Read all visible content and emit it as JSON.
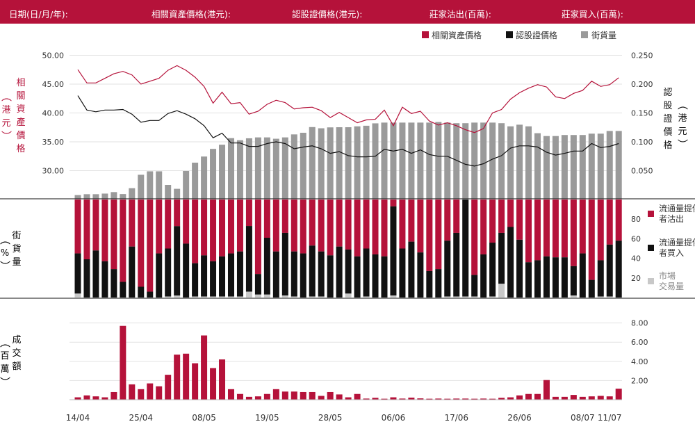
{
  "header": {
    "date_label": "日期(日/月/年):",
    "underlying_label": "相關資產價格(港元):",
    "warrant_label": "認股證價格(港元):",
    "sell_label": "莊家沽出(百萬):",
    "buy_label": "莊家買入(百萬):"
  },
  "colors": {
    "accent": "#b5123a",
    "black": "#111111",
    "gray": "#9a9a9a",
    "light_gray": "#c8c8c8"
  },
  "chart_data": [
    {
      "type": "line",
      "legend": [
        "相關資產價格",
        "認股證價格",
        "街貨量"
      ],
      "left_axis_ticks": [
        "50.00",
        "45.00",
        "40.00",
        "35.00",
        "30.00"
      ],
      "right_axis_ticks": [
        "0.250",
        "0.200",
        "0.150",
        "0.100",
        "0.050"
      ],
      "ylim_left": [
        25,
        50
      ],
      "ylim_right": [
        0,
        0.25
      ],
      "series": [
        {
          "name": "相關資產價格",
          "axis": "left",
          "values": [
            47.5,
            45.2,
            45.2,
            46,
            46.8,
            47.2,
            46.6,
            45,
            45.5,
            46,
            47.4,
            48.2,
            47.4,
            46.2,
            44.6,
            41.7,
            43.6,
            41.6,
            41.8,
            39.8,
            40.3,
            41.5,
            42.2,
            41.8,
            40.7,
            40.9,
            41,
            40.4,
            39.2,
            40.1,
            39.2,
            38.3,
            38.8,
            38.9,
            40.5,
            37.8,
            41,
            39.9,
            40.3,
            38.6,
            37.9,
            38.3,
            37.8,
            37.1,
            36.6,
            37.3,
            40,
            40.6,
            42.4,
            43.5,
            44.3,
            44.9,
            44.5,
            42.8,
            42.5,
            43.4,
            43.9,
            45.5,
            44.6,
            44.9,
            46.1
          ]
        },
        {
          "name": "認股證價格",
          "axis": "right",
          "values": [
            0.18,
            0.155,
            0.152,
            0.155,
            0.155,
            0.156,
            0.148,
            0.134,
            0.137,
            0.137,
            0.149,
            0.154,
            0.148,
            0.14,
            0.128,
            0.107,
            0.115,
            0.098,
            0.098,
            0.092,
            0.092,
            0.097,
            0.1,
            0.097,
            0.088,
            0.091,
            0.093,
            0.088,
            0.08,
            0.083,
            0.076,
            0.074,
            0.074,
            0.075,
            0.087,
            0.084,
            0.087,
            0.08,
            0.086,
            0.078,
            0.075,
            0.075,
            0.068,
            0.061,
            0.058,
            0.062,
            0.07,
            0.076,
            0.089,
            0.093,
            0.093,
            0.091,
            0.082,
            0.077,
            0.08,
            0.084,
            0.084,
            0.097,
            0.09,
            0.092,
            0.097
          ]
        }
      ]
    },
    {
      "type": "bar",
      "name": "街貨量",
      "axis": "percent",
      "values": [
        2.5,
        3.1,
        3.1,
        3.5,
        4.5,
        3.2,
        7.1,
        16.1,
        18.4,
        18.4,
        9.3,
        6.7,
        18.6,
        24.2,
        28.3,
        33.4,
        36.2,
        40.6,
        39.2,
        40.5,
        41.1,
        41.1,
        40.2,
        41.1,
        43.1,
        44.2,
        48,
        47.2,
        47.8,
        47.9,
        47.9,
        48.5,
        48.9,
        50.5,
        51,
        51,
        51,
        51,
        51,
        51,
        51.4,
        51,
        50.6,
        50.6,
        51,
        51,
        51,
        50.6,
        48.5,
        49.6,
        48.5,
        43.9,
        42,
        42,
        42.7,
        42.7,
        42.7,
        43.6,
        43.6,
        45.4,
        45.4
      ]
    },
    {
      "type": "bar",
      "stacked": true,
      "y_ticks": [
        "80",
        "60",
        "40",
        "20"
      ],
      "ylim": [
        0,
        100
      ],
      "series": [
        {
          "name": "流通量提供者沽出",
          "values": [
            55,
            61,
            52,
            63,
            71,
            84,
            48,
            89,
            94,
            55,
            50,
            28,
            45,
            65,
            57,
            63,
            58,
            55,
            53,
            27,
            76,
            39,
            53,
            34,
            53,
            55,
            47,
            53,
            57,
            48,
            51,
            58,
            50,
            56,
            58,
            7,
            50,
            43,
            54,
            73,
            71,
            42,
            34,
            0,
            77,
            56,
            44,
            34,
            28,
            41,
            64,
            62,
            58,
            59,
            59,
            68,
            55,
            82,
            62,
            46,
            42
          ]
        },
        {
          "name": "流通量提供者買入",
          "values": [
            41,
            39,
            48,
            37,
            29,
            16,
            52,
            11,
            6,
            45,
            49,
            73,
            55,
            34,
            42,
            36,
            41,
            44,
            46,
            67,
            21,
            58,
            47,
            64,
            46,
            45,
            52,
            46,
            43,
            52,
            45,
            42,
            49,
            44,
            42,
            91,
            50,
            57,
            46,
            27,
            29,
            57,
            65,
            99,
            22,
            44,
            55,
            52,
            72,
            59,
            36,
            38,
            42,
            41,
            41,
            30,
            45,
            18,
            37,
            53,
            58
          ]
        },
        {
          "name": "市場交易量",
          "values": [
            4,
            0,
            0,
            0,
            0,
            0,
            0,
            0,
            0,
            0,
            1,
            2,
            0,
            1,
            1,
            1,
            1,
            1,
            1,
            6,
            3,
            3,
            0,
            2,
            1,
            0,
            1,
            1,
            0,
            0,
            4,
            0,
            1,
            0,
            0,
            2,
            0,
            0,
            0,
            0,
            0,
            1,
            1,
            1,
            1,
            0,
            1,
            14,
            0,
            0,
            0,
            0,
            0,
            0,
            0,
            2,
            0,
            0,
            1,
            1,
            0
          ]
        }
      ]
    },
    {
      "type": "bar",
      "name": "成交額",
      "y_ticks": [
        "8.00",
        "6.00",
        "4.00",
        "2.00"
      ],
      "ylim": [
        0,
        8.8
      ],
      "values": [
        0.25,
        0.45,
        0.35,
        0.25,
        0.8,
        7.7,
        1.6,
        1.1,
        1.7,
        1.4,
        2.6,
        4.7,
        4.8,
        3.8,
        6.7,
        3.3,
        4.2,
        1.1,
        0.6,
        0.3,
        0.35,
        0.6,
        1.1,
        0.85,
        0.85,
        0.8,
        0.8,
        0.4,
        0.8,
        0.55,
        0.25,
        0.6,
        0.12,
        0.2,
        0.1,
        0.25,
        0.12,
        0.22,
        0.14,
        0.1,
        0.12,
        0.1,
        0.12,
        0.12,
        0.1,
        0.12,
        0.1,
        0.2,
        0.25,
        0.45,
        0.6,
        0.6,
        2.05,
        0.3,
        0.3,
        0.5,
        0.3,
        0.35,
        0.4,
        0.35,
        1.15
      ]
    }
  ],
  "x_axis": {
    "labels": [
      "14/04",
      "25/04",
      "08/05",
      "19/05",
      "28/05",
      "06/06",
      "17/06",
      "26/06",
      "08/07",
      "11/07"
    ],
    "label_indices": [
      0,
      7,
      14,
      21,
      28,
      35,
      42,
      49,
      56,
      59
    ]
  },
  "axis_titles": {
    "left_price": "相關資產價格",
    "left_price_unit": "港元",
    "right_price": "認股證價格",
    "right_price_unit": "港元",
    "middle_percent": "%",
    "middle_title": "街貨量",
    "bottom_unit": "百萬",
    "bottom_title": "成交額"
  },
  "middle_legend": {
    "sell": "流通量提供者沽出",
    "buy": "流通量提供者買入",
    "market": "市場交易量"
  }
}
